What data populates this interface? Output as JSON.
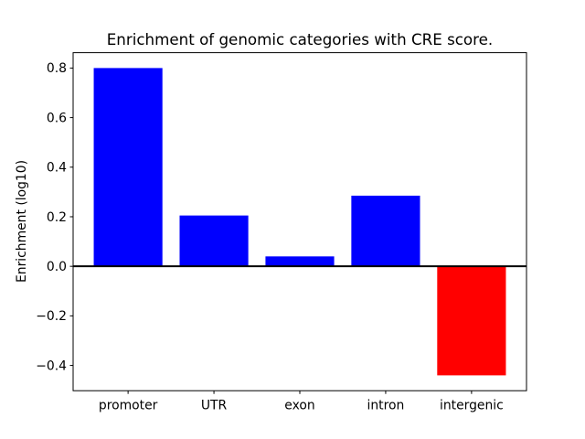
{
  "chart_data": {
    "type": "bar",
    "title": "Enrichment of genomic categories with CRE score.",
    "xlabel": "",
    "ylabel": "Enrichment (log10)",
    "categories": [
      "promoter",
      "UTR",
      "exon",
      "intron",
      "intergenic"
    ],
    "values": [
      0.8,
      0.205,
      0.04,
      0.285,
      -0.44
    ],
    "bar_colors": [
      "#0000ff",
      "#0000ff",
      "#0000ff",
      "#0000ff",
      "#ff0000"
    ],
    "positive_color": "#0000ff",
    "negative_color": "#ff0000",
    "bar_width": 0.8,
    "ylim": [
      -0.502,
      0.862
    ],
    "xlim": [
      -0.64,
      4.64
    ],
    "yticks": [
      {
        "value": 0.8,
        "label": "0.8"
      },
      {
        "value": 0.6,
        "label": "0.6"
      },
      {
        "value": 0.4,
        "label": "0.4"
      },
      {
        "value": 0.2,
        "label": "0.2"
      },
      {
        "value": 0.0,
        "label": "0.0"
      },
      {
        "value": -0.2,
        "label": "−0.2"
      },
      {
        "value": -0.4,
        "label": "−0.4"
      }
    ],
    "zero_line": true,
    "grid": false,
    "legend_position": "none",
    "axes_color": "#000000",
    "background_color": "#ffffff"
  }
}
